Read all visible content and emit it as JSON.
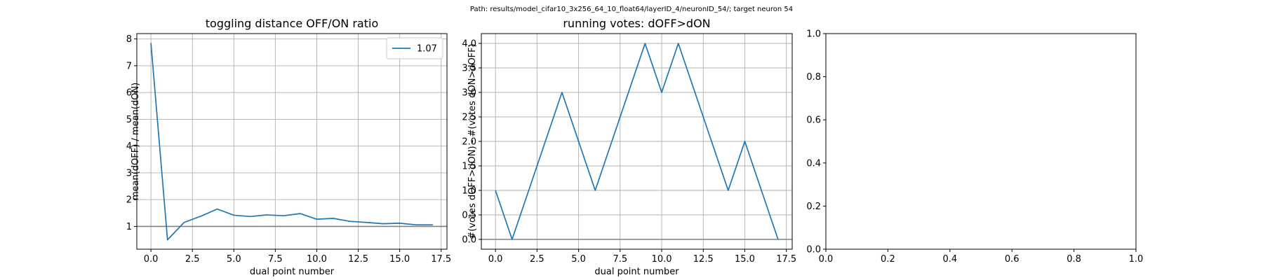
{
  "suptitle": "Path: results/model_cifar10_3x256_64_10_float64/layerID_4/neuronID_54/; target neuron 54",
  "colors": {
    "series": "#1f77b4",
    "reference": "#808080"
  },
  "chart_data": [
    {
      "type": "line",
      "title": "toggling distance OFF/ON ratio",
      "xlabel": "dual point number",
      "ylabel": "mean(dOFF) / mean(dON)",
      "xlim": [
        -0.85,
        17.85
      ],
      "ylim": [
        0.15,
        8.2
      ],
      "xticks": [
        0,
        2.5,
        5,
        7.5,
        10,
        12.5,
        15,
        17.5
      ],
      "xtick_labels": [
        "0.0",
        "2.5",
        "5.0",
        "7.5",
        "10.0",
        "12.5",
        "15.0",
        "17.5"
      ],
      "yticks": [
        1,
        2,
        3,
        4,
        5,
        6,
        7,
        8
      ],
      "ytick_labels": [
        "1",
        "2",
        "3",
        "4",
        "5",
        "6",
        "7",
        "8"
      ],
      "grid": true,
      "legend": {
        "placement": "top-right",
        "entries": [
          "1.07"
        ]
      },
      "hline": 1,
      "series": [
        {
          "name": "1.07",
          "x": [
            0,
            1,
            2,
            3,
            4,
            5,
            6,
            7,
            8,
            9,
            10,
            11,
            12,
            13,
            14,
            15,
            16,
            17
          ],
          "y": [
            7.85,
            0.5,
            1.15,
            1.38,
            1.65,
            1.42,
            1.37,
            1.43,
            1.4,
            1.48,
            1.27,
            1.3,
            1.19,
            1.15,
            1.1,
            1.12,
            1.06,
            1.06
          ]
        }
      ]
    },
    {
      "type": "line",
      "title": "running votes: dOFF>dON",
      "xlabel": "dual point number",
      "ylabel": "#(votes dOFF>dON) - #(votes dON>dOFF)",
      "xlim": [
        -0.85,
        17.85
      ],
      "ylim": [
        -0.2,
        4.2
      ],
      "xticks": [
        0,
        2.5,
        5,
        7.5,
        10,
        12.5,
        15,
        17.5
      ],
      "xtick_labels": [
        "0.0",
        "2.5",
        "5.0",
        "7.5",
        "10.0",
        "12.5",
        "15.0",
        "17.5"
      ],
      "yticks": [
        0,
        0.5,
        1,
        1.5,
        2,
        2.5,
        3,
        3.5,
        4
      ],
      "ytick_labels": [
        "0.0",
        "0.5",
        "1.0",
        "1.5",
        "2.0",
        "2.5",
        "3.0",
        "3.5",
        "4.0"
      ],
      "grid": true,
      "hline": 0,
      "series": [
        {
          "x": [
            0,
            1,
            2,
            3,
            4,
            5,
            6,
            7,
            8,
            9,
            10,
            11,
            12,
            13,
            14,
            15,
            16,
            17
          ],
          "y": [
            1,
            0,
            1,
            2,
            3,
            2,
            1,
            2,
            3,
            4,
            3,
            4,
            3,
            2,
            1,
            2,
            1,
            0
          ]
        }
      ]
    },
    {
      "type": "line",
      "title": "",
      "xlabel": "",
      "ylabel": "",
      "xlim": [
        0,
        1
      ],
      "ylim": [
        0,
        1
      ],
      "xticks": [
        0,
        0.2,
        0.4,
        0.6,
        0.8,
        1
      ],
      "xtick_labels": [
        "0.0",
        "0.2",
        "0.4",
        "0.6",
        "0.8",
        "1.0"
      ],
      "yticks": [
        0,
        0.2,
        0.4,
        0.6,
        0.8,
        1
      ],
      "ytick_labels": [
        "0.0",
        "0.2",
        "0.4",
        "0.6",
        "0.8",
        "1.0"
      ],
      "grid": false,
      "series": []
    }
  ]
}
